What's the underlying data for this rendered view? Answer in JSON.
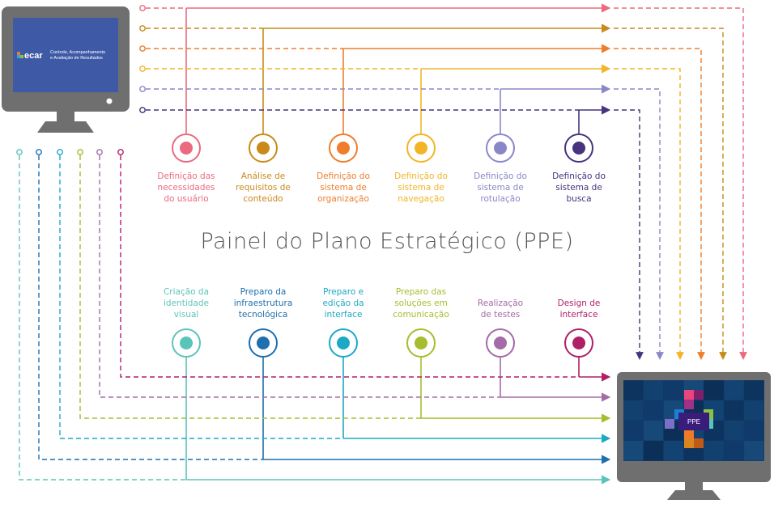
{
  "title": "Painel do Plano Estratégico (PPE)",
  "left_monitor": {
    "logo": "ecar",
    "line1": "Controle, Acompanhamento",
    "line2": "e Avaliação de Resultados"
  },
  "right_monitor": {
    "label": "PPE"
  },
  "top_steps": [
    {
      "label": "Definição das\nnecessidades\ndo usuário",
      "color": "#ea6a7f",
      "icon": "user-at-desk-icon"
    },
    {
      "label": "Análise de\nrequisitos de\nconteúdo",
      "color": "#c98a1a",
      "icon": "gears-icon"
    },
    {
      "label": "Definição do\nsistema de\norganização",
      "color": "#ef7d2c",
      "icon": "folders-icon"
    },
    {
      "label": "Definição do\nsistema de\nnavegação",
      "color": "#f2b525",
      "icon": "cursor-arrow-icon"
    },
    {
      "label": "Definição do\nsistema de\nrotulação",
      "color": "#8a87c9",
      "icon": "tag-icon"
    },
    {
      "label": "Definição do\nsistema de\nbusca",
      "color": "#47337e",
      "icon": "magnifier-icon"
    }
  ],
  "bottom_steps": [
    {
      "label": "Criação da\nidentidade\nvisual",
      "color": "#5bc4b9",
      "icon": "pencil-icon"
    },
    {
      "label": "Preparo da\ninfraestrutura\ntecnológica",
      "color": "#1d6fae",
      "icon": "server-icon"
    },
    {
      "label": "Preparo e\nedição da\ninterface",
      "color": "#1ca9c4",
      "icon": "smileys-icon"
    },
    {
      "label": "Preparo das\nsoluções em\ncomunicação",
      "color": "#a6bd2d",
      "icon": "speech-bubbles-icon"
    },
    {
      "label": "Realização\nde testes",
      "color": "#a56aa8",
      "icon": "thumbs-up-icon"
    },
    {
      "label": "Design de\ninterface",
      "color": "#b01f66",
      "icon": "browser-window-icon"
    }
  ],
  "colors": {
    "monitor_body": "#6f6f6f",
    "monitor_screen_left": "#3e5aa6",
    "monitor_screen_right": "#0f3a6a"
  }
}
